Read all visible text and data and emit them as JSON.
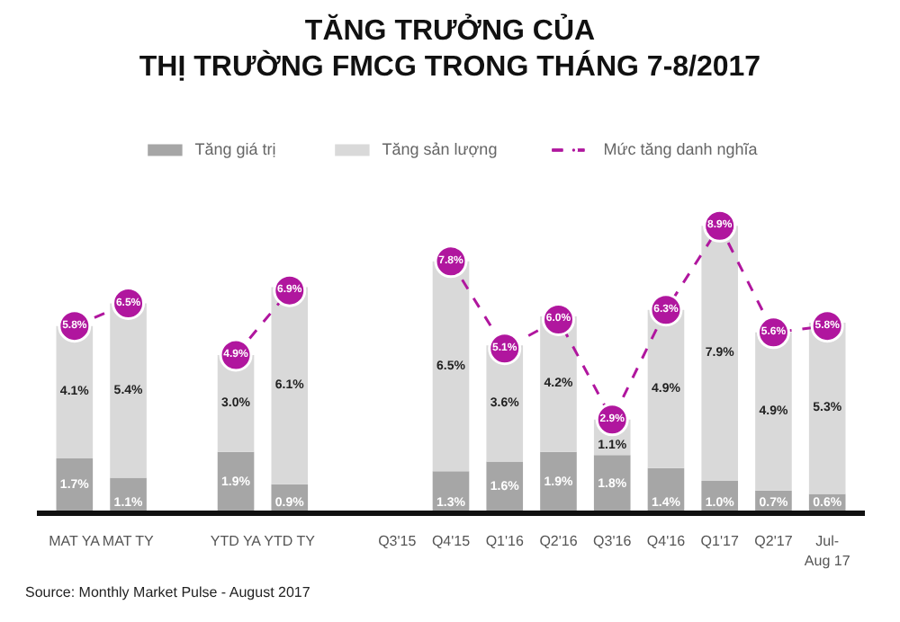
{
  "chart_data": {
    "type": "bar",
    "title": "TĂNG TRƯỞNG CỦA\nTHỊ TRƯỜNG FMCG TRONG THÁNG 7-8/2017",
    "categories": [
      "MAT YA",
      "MAT TY",
      null,
      "YTD YA",
      "YTD TY",
      null,
      "Q3'15",
      "Q4'15",
      "Q1'16",
      "Q2'16",
      "Q3'16",
      "Q4'16",
      "Q1'17",
      "Q2'17",
      "Jul-\nAug 17"
    ],
    "stacked": true,
    "series": [
      {
        "name": "Tăng giá trị",
        "color": "#a6a6a6",
        "values": [
          1.7,
          1.1,
          null,
          1.9,
          0.9,
          null,
          null,
          1.3,
          1.6,
          1.9,
          1.8,
          1.4,
          1.0,
          0.7,
          0.6
        ],
        "value_labels": [
          "1.7%",
          "1.1%",
          null,
          "1.9%",
          "0.9%",
          null,
          null,
          "1.3%",
          "1.6%",
          "1.9%",
          "1.8%",
          "1.4%",
          "1.0%",
          "0.7%",
          "0.6%"
        ]
      },
      {
        "name": "Tăng sản lượng",
        "color": "#d9d9d9",
        "values": [
          4.1,
          5.4,
          null,
          3.0,
          6.1,
          null,
          null,
          6.5,
          3.6,
          4.2,
          1.1,
          4.9,
          7.9,
          4.9,
          5.3
        ],
        "value_labels": [
          "4.1%",
          "5.4%",
          null,
          "3.0%",
          "6.1%",
          null,
          null,
          "6.5%",
          "3.6%",
          "4.2%",
          "1.1%",
          "4.9%",
          "7.9%",
          "4.9%",
          "5.3%"
        ]
      },
      {
        "name": "Mức tăng danh nghĩa",
        "type": "line",
        "color": "#b0169e",
        "marker": "circle",
        "line_style": "dashed",
        "values": [
          5.8,
          6.5,
          null,
          4.9,
          6.9,
          null,
          null,
          7.8,
          5.1,
          6.0,
          2.9,
          6.3,
          8.9,
          5.6,
          5.8
        ],
        "value_labels": [
          "5.8%",
          "6.5%",
          null,
          "4.9%",
          "6.9%",
          null,
          null,
          "7.8%",
          "5.1%",
          "6.0%",
          "2.9%",
          "6.3%",
          "8.9%",
          "5.6%",
          "5.8%"
        ]
      }
    ],
    "legend": "top",
    "grid": false,
    "annotations": [
      "Source: Monthly Market Pulse - August 2017"
    ]
  }
}
